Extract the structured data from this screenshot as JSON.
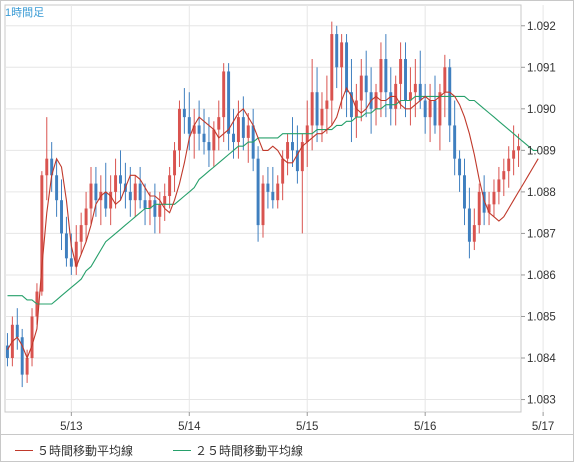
{
  "chart_data": {
    "type": "candlestick",
    "title": "1時間足",
    "xlabel": "",
    "ylabel": "",
    "ylim": [
      1.0827,
      1.0925
    ],
    "yticks": [
      1.083,
      1.084,
      1.085,
      1.086,
      1.087,
      1.088,
      1.089,
      1.09,
      1.091,
      1.092
    ],
    "ytick_labels": [
      "1.083",
      "1.084",
      "1.085",
      "1.086",
      "1.087",
      "1.088",
      "1.089",
      "1.090",
      "1.091",
      "1.092"
    ],
    "xtick_labels": [
      "5/13",
      "5/14",
      "5/15",
      "5/16",
      "5/17"
    ],
    "xtick_index": [
      13,
      37,
      61,
      85,
      109
    ],
    "grid": true,
    "colors": {
      "up": "#d9534f",
      "down": "#3f7fbf",
      "ma5": "#c0392b",
      "ma25": "#27a06b"
    },
    "ma5": [
      1.0842,
      1.0844,
      1.0845,
      1.0843,
      1.084,
      1.0843,
      1.0847,
      1.0862,
      1.0875,
      1.0884,
      1.0888,
      1.0886,
      1.0878,
      1.0867,
      1.0862,
      1.0865,
      1.0868,
      1.0872,
      1.0877,
      1.0879,
      1.088,
      1.0879,
      1.0877,
      1.0878,
      1.0881,
      1.0884,
      1.0884,
      1.0883,
      1.0881,
      1.0879,
      1.0879,
      1.0878,
      1.0876,
      1.0875,
      1.0878,
      1.0882,
      1.0887,
      1.0893,
      1.0896,
      1.0898,
      1.0897,
      1.0896,
      1.0895,
      1.0893,
      1.0894,
      1.0895,
      1.0897,
      1.0899,
      1.09,
      1.0898,
      1.0896,
      1.0893,
      1.089,
      1.089,
      1.0891,
      1.089,
      1.0888,
      1.0887,
      1.0887,
      1.0889,
      1.0891,
      1.0892,
      1.0893,
      1.0894,
      1.0894,
      1.0895,
      1.0896,
      1.0898,
      1.0902,
      1.0905,
      1.0903,
      1.09,
      1.0899,
      1.09,
      1.0902,
      1.0903,
      1.0902,
      1.0902,
      1.0903,
      1.0903,
      1.0901,
      1.09,
      1.09,
      1.0901,
      1.0902,
      1.0903,
      1.0902,
      1.0902,
      1.0903,
      1.0904,
      1.0904,
      1.0903,
      1.0901,
      1.0898,
      1.0894,
      1.0889,
      1.0883,
      1.0878,
      1.0875,
      1.0874,
      1.0873,
      1.0874,
      1.0876,
      1.0878,
      1.088,
      1.0882,
      1.0884,
      1.0886,
      1.0888
    ],
    "ma25": [
      1.0855,
      1.0855,
      1.0855,
      1.0855,
      1.0854,
      1.0854,
      1.0853,
      1.0853,
      1.0853,
      1.0853,
      1.0854,
      1.0855,
      1.0856,
      1.0857,
      1.0858,
      1.0859,
      1.0861,
      1.0862,
      1.0864,
      1.0866,
      1.0868,
      1.0869,
      1.087,
      1.0871,
      1.0872,
      1.0873,
      1.0874,
      1.0875,
      1.0876,
      1.0876,
      1.0877,
      1.0877,
      1.0877,
      1.0877,
      1.0877,
      1.0878,
      1.0879,
      1.088,
      1.0881,
      1.0883,
      1.0884,
      1.0885,
      1.0886,
      1.0887,
      1.0888,
      1.0889,
      1.089,
      1.0891,
      1.0891,
      1.0892,
      1.0892,
      1.0893,
      1.0893,
      1.0893,
      1.0893,
      1.0893,
      1.0894,
      1.0894,
      1.0894,
      1.0894,
      1.0894,
      1.0894,
      1.0894,
      1.0895,
      1.0895,
      1.0895,
      1.0895,
      1.0896,
      1.0896,
      1.0897,
      1.0897,
      1.0898,
      1.0898,
      1.0899,
      1.0899,
      1.09,
      1.09,
      1.0901,
      1.0901,
      1.0901,
      1.0902,
      1.0902,
      1.0902,
      1.0903,
      1.0903,
      1.0903,
      1.0903,
      1.0903,
      1.0903,
      1.0903,
      1.0903,
      1.0903,
      1.0903,
      1.0903,
      1.0902,
      1.0902,
      1.0901,
      1.09,
      1.0899,
      1.0898,
      1.0897,
      1.0896,
      1.0895,
      1.0894,
      1.0893,
      1.0892,
      1.0891,
      1.089,
      1.089
    ],
    "candles": [
      [
        1.0843,
        1.0846,
        1.0838,
        1.084
      ],
      [
        1.084,
        1.085,
        1.0838,
        1.0848
      ],
      [
        1.0848,
        1.0852,
        1.0842,
        1.0845
      ],
      [
        1.0845,
        1.0847,
        1.0833,
        1.0836
      ],
      [
        1.0836,
        1.0842,
        1.0834,
        1.084
      ],
      [
        1.084,
        1.0852,
        1.0838,
        1.085
      ],
      [
        1.085,
        1.0858,
        1.0848,
        1.0856
      ],
      [
        1.0856,
        1.0885,
        1.0855,
        1.0884
      ],
      [
        1.0884,
        1.0898,
        1.0878,
        1.0888
      ],
      [
        1.0888,
        1.0892,
        1.088,
        1.0884
      ],
      [
        1.0884,
        1.0888,
        1.0874,
        1.0878
      ],
      [
        1.0878,
        1.0883,
        1.0866,
        1.087
      ],
      [
        1.087,
        1.0874,
        1.0862,
        1.0864
      ],
      [
        1.0864,
        1.087,
        1.086,
        1.0862
      ],
      [
        1.0862,
        1.0872,
        1.086,
        1.0868
      ],
      [
        1.0868,
        1.0875,
        1.0865,
        1.0872
      ],
      [
        1.0872,
        1.088,
        1.0868,
        1.0876
      ],
      [
        1.0876,
        1.0886,
        1.0872,
        1.0882
      ],
      [
        1.0882,
        1.0886,
        1.0874,
        1.0878
      ],
      [
        1.0878,
        1.0884,
        1.0872,
        1.088
      ],
      [
        1.088,
        1.0887,
        1.0874,
        1.0876
      ],
      [
        1.0876,
        1.0884,
        1.0872,
        1.088
      ],
      [
        1.088,
        1.0888,
        1.0876,
        1.0884
      ],
      [
        1.0884,
        1.089,
        1.0878,
        1.0882
      ],
      [
        1.0882,
        1.0887,
        1.0876,
        1.088
      ],
      [
        1.088,
        1.0886,
        1.0874,
        1.0878
      ],
      [
        1.0878,
        1.0884,
        1.0874,
        1.0882
      ],
      [
        1.0882,
        1.0886,
        1.0876,
        1.0878
      ],
      [
        1.0878,
        1.0882,
        1.0872,
        1.0876
      ],
      [
        1.0876,
        1.088,
        1.0872,
        1.0878
      ],
      [
        1.0878,
        1.0882,
        1.087,
        1.0874
      ],
      [
        1.0874,
        1.088,
        1.087,
        1.0877
      ],
      [
        1.0877,
        1.0882,
        1.0873,
        1.0879
      ],
      [
        1.0879,
        1.0886,
        1.0876,
        1.0884
      ],
      [
        1.0884,
        1.0892,
        1.088,
        1.089
      ],
      [
        1.089,
        1.0902,
        1.0886,
        1.09
      ],
      [
        1.09,
        1.0905,
        1.0894,
        1.0898
      ],
      [
        1.0898,
        1.0904,
        1.089,
        1.0894
      ],
      [
        1.0894,
        1.09,
        1.0888,
        1.0896
      ],
      [
        1.0896,
        1.0902,
        1.089,
        1.0894
      ],
      [
        1.0894,
        1.09,
        1.0889,
        1.0892
      ],
      [
        1.0892,
        1.0898,
        1.0886,
        1.089
      ],
      [
        1.089,
        1.0897,
        1.0886,
        1.0895
      ],
      [
        1.0895,
        1.0902,
        1.089,
        1.0898
      ],
      [
        1.0898,
        1.0911,
        1.0892,
        1.0909
      ],
      [
        1.0909,
        1.0911,
        1.089,
        1.0894
      ],
      [
        1.0894,
        1.09,
        1.0888,
        1.0892
      ],
      [
        1.0892,
        1.0902,
        1.0888,
        1.0898
      ],
      [
        1.0898,
        1.0903,
        1.089,
        1.0893
      ],
      [
        1.0893,
        1.0899,
        1.0887,
        1.0896
      ],
      [
        1.0896,
        1.09,
        1.0885,
        1.0888
      ],
      [
        1.0888,
        1.0891,
        1.0868,
        1.0872
      ],
      [
        1.0872,
        1.0884,
        1.0869,
        1.0882
      ],
      [
        1.0882,
        1.0886,
        1.0876,
        1.088
      ],
      [
        1.088,
        1.0886,
        1.0876,
        1.0878
      ],
      [
        1.0878,
        1.0884,
        1.0876,
        1.0882
      ],
      [
        1.0882,
        1.089,
        1.0878,
        1.0888
      ],
      [
        1.0888,
        1.0894,
        1.0884,
        1.0892
      ],
      [
        1.0892,
        1.0898,
        1.0886,
        1.089
      ],
      [
        1.089,
        1.0896,
        1.0882,
        1.0885
      ],
      [
        1.0885,
        1.0894,
        1.087,
        1.0892
      ],
      [
        1.0892,
        1.0902,
        1.0886,
        1.0896
      ],
      [
        1.0896,
        1.0912,
        1.089,
        1.0904
      ],
      [
        1.0904,
        1.091,
        1.0892,
        1.0896
      ],
      [
        1.0896,
        1.0904,
        1.0892,
        1.09
      ],
      [
        1.09,
        1.0908,
        1.0894,
        1.0902
      ],
      [
        1.0902,
        1.0921,
        1.0896,
        1.0918
      ],
      [
        1.0918,
        1.092,
        1.0905,
        1.091
      ],
      [
        1.091,
        1.0918,
        1.09,
        1.0916
      ],
      [
        1.0916,
        1.0918,
        1.0898,
        1.0904
      ],
      [
        1.0904,
        1.0912,
        1.0892,
        1.0898
      ],
      [
        1.0898,
        1.0906,
        1.0893,
        1.0902
      ],
      [
        1.0902,
        1.0912,
        1.0897,
        1.0908
      ],
      [
        1.0908,
        1.0914,
        1.0898,
        1.0904
      ],
      [
        1.0904,
        1.091,
        1.0894,
        1.09
      ],
      [
        1.09,
        1.0906,
        1.0896,
        1.0904
      ],
      [
        1.0904,
        1.0916,
        1.0898,
        1.0912
      ],
      [
        1.0912,
        1.0918,
        1.0898,
        1.0904
      ],
      [
        1.0904,
        1.091,
        1.0896,
        1.09
      ],
      [
        1.09,
        1.0908,
        1.0896,
        1.0906
      ],
      [
        1.0906,
        1.0916,
        1.09,
        1.0912
      ],
      [
        1.0912,
        1.0916,
        1.0898,
        1.0902
      ],
      [
        1.0902,
        1.091,
        1.0896,
        1.0904
      ],
      [
        1.0904,
        1.0912,
        1.0898,
        1.0906
      ],
      [
        1.0906,
        1.0914,
        1.09,
        1.0902
      ],
      [
        1.0902,
        1.0906,
        1.0894,
        1.0898
      ],
      [
        1.0898,
        1.0906,
        1.0892,
        1.0902
      ],
      [
        1.0902,
        1.0908,
        1.0894,
        1.0896
      ],
      [
        1.0896,
        1.0906,
        1.089,
        1.0904
      ],
      [
        1.0904,
        1.0913,
        1.0898,
        1.091
      ],
      [
        1.091,
        1.0912,
        1.0892,
        1.0896
      ],
      [
        1.0896,
        1.0902,
        1.0884,
        1.0888
      ],
      [
        1.0888,
        1.089,
        1.088,
        1.0884
      ],
      [
        1.0884,
        1.0888,
        1.0872,
        1.0876
      ],
      [
        1.0876,
        1.0881,
        1.0864,
        1.0868
      ],
      [
        1.0868,
        1.0876,
        1.0866,
        1.0872
      ],
      [
        1.0872,
        1.0882,
        1.087,
        1.088
      ],
      [
        1.088,
        1.0884,
        1.0872,
        1.0875
      ],
      [
        1.0875,
        1.088,
        1.0872,
        1.0877
      ],
      [
        1.0877,
        1.0883,
        1.0874,
        1.088
      ],
      [
        1.088,
        1.0886,
        1.0877,
        1.0883
      ],
      [
        1.0883,
        1.0888,
        1.0879,
        1.0885
      ],
      [
        1.0885,
        1.0891,
        1.0881,
        1.0888
      ],
      [
        1.0888,
        1.0896,
        1.0884,
        1.089
      ],
      [
        1.089,
        1.0894,
        1.0886,
        1.0891
      ]
    ],
    "series": [
      {
        "name": "５時間移動平均線",
        "color": "#c0392b"
      },
      {
        "name": "２５時間移動平均線",
        "color": "#27a06b"
      }
    ]
  }
}
